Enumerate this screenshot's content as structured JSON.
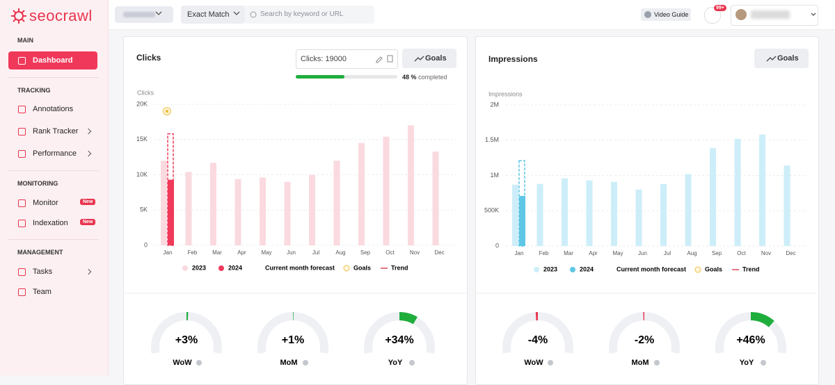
{
  "sidebar": {
    "logo": "seocrawl",
    "sections": [
      {
        "title": "MAIN",
        "items": [
          {
            "label": "Dashboard"
          }
        ]
      },
      {
        "title": "TRACKING",
        "items": [
          {
            "label": "Annotations"
          },
          {
            "label": "Rank Tracker"
          },
          {
            "label": "Performance"
          }
        ]
      },
      {
        "title": "MONITORING",
        "items": [
          {
            "label": "Monitor",
            "badge": "New"
          },
          {
            "label": "Indexation",
            "badge": "New"
          }
        ]
      },
      {
        "title": "MANAGEMENT",
        "items": [
          {
            "label": "Tasks"
          },
          {
            "label": "Team"
          }
        ]
      }
    ]
  },
  "topbar": {
    "match": "Exact Match",
    "search_placeholder": "Search by keyword or URL",
    "video_guide": "Video Guide",
    "notifications": "99+"
  },
  "panels": [
    {
      "title": "Clicks",
      "goal_input": "Clicks: 19000",
      "goals_button": "Goals",
      "progress": {
        "value": 48,
        "label": "48 %",
        "text": "completed"
      },
      "chart": {
        "type": "bar",
        "y_label": "Clicks",
        "categories": [
          "Jan",
          "Feb",
          "Mar",
          "Apr",
          "May",
          "Jun",
          "Jul",
          "Aug",
          "Sep",
          "Oct",
          "Nov",
          "Dec"
        ],
        "series": [
          {
            "name": "2023",
            "color": "#fadadf",
            "values": [
              12000,
              10400,
              11700,
              9400,
              9600,
              9000,
              10000,
              12000,
              14500,
              15400,
              17000,
              13300
            ]
          },
          {
            "name": "2024",
            "color": "#f0395a",
            "values": [
              9300,
              null,
              null,
              null,
              null,
              null,
              null,
              null,
              null,
              null,
              null,
              null
            ]
          }
        ],
        "forecast": {
          "name": "Current month forecast",
          "value": 15800
        },
        "goal": {
          "name": "Goals",
          "value": 19000
        },
        "trend": {
          "name": "Trend"
        },
        "ylim": [
          0,
          20000
        ],
        "yticks": [
          0,
          {
            "value": 5000,
            "label": "5K"
          },
          {
            "value": 10000,
            "label": "10K"
          },
          {
            "value": 15000,
            "label": "15K"
          },
          {
            "value": 20000,
            "label": "20K"
          }
        ]
      },
      "gauges": [
        {
          "label": "WoW",
          "value": 3,
          "value_label": "+3%"
        },
        {
          "label": "MoM",
          "value": 1,
          "value_label": "+1%"
        },
        {
          "label": "YoY",
          "value": 34,
          "value_label": "+34%"
        }
      ]
    },
    {
      "title": "Impressions",
      "goals_button": "Goals",
      "chart": {
        "type": "bar",
        "y_label": "Impressions",
        "categories": [
          "Jan",
          "Feb",
          "Mar",
          "Apr",
          "May",
          "Jun",
          "Jul",
          "Aug",
          "Sep",
          "Oct",
          "Nov",
          "Dec"
        ],
        "series": [
          {
            "name": "2023",
            "color": "#cdeef9",
            "values": [
              870000,
              880000,
              960000,
              930000,
              910000,
              800000,
              880000,
              1020000,
              1390000,
              1520000,
              1580000,
              1140000
            ]
          },
          {
            "name": "2024",
            "color": "#5ec7e6",
            "values": [
              710000,
              null,
              null,
              null,
              null,
              null,
              null,
              null,
              null,
              null,
              null,
              null
            ]
          }
        ],
        "forecast": {
          "name": "Current month forecast",
          "value": 1210000
        },
        "goal": {
          "name": "Goals"
        },
        "trend": {
          "name": "Trend"
        },
        "ylim": [
          0,
          2000000
        ],
        "yticks": [
          0,
          {
            "value": 500000,
            "label": "500K"
          },
          {
            "value": 1000000,
            "label": "1M"
          },
          {
            "value": 1500000,
            "label": "1.5M"
          },
          {
            "value": 2000000,
            "label": "2M"
          }
        ]
      },
      "gauges": [
        {
          "label": "WoW",
          "value": -4,
          "value_label": "-4%"
        },
        {
          "label": "MoM",
          "value": -2,
          "value_label": "-2%"
        },
        {
          "label": "YoY",
          "value": 46,
          "value_label": "+46%"
        }
      ]
    }
  ]
}
